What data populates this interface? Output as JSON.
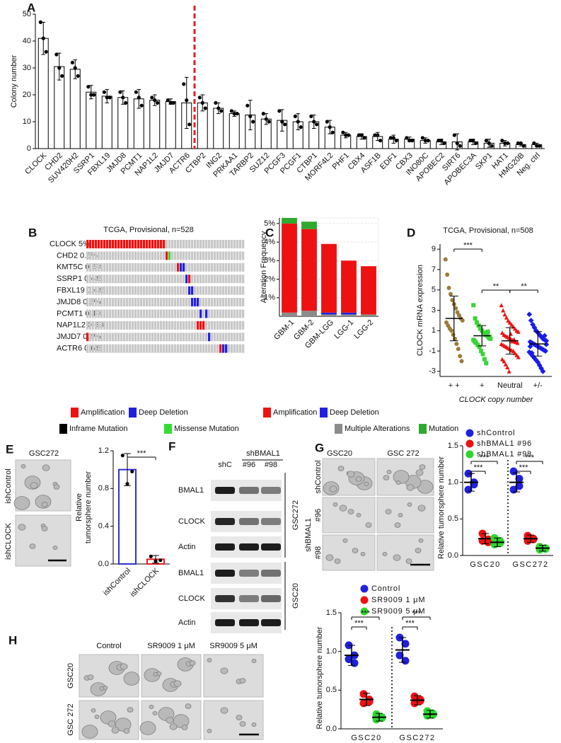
{
  "panel_labels": [
    "A",
    "B",
    "C",
    "D",
    "E",
    "F",
    "G",
    "H"
  ],
  "chart_data": [
    {
      "type": "bar",
      "ylabel": "Colony number",
      "categories": [
        "CLOCK",
        "CHD2",
        "SUV420H2",
        "SSRP1",
        "FBXL19",
        "JMJD8",
        "PCMT1",
        "NAP1L2",
        "JMJD7",
        "ACTR6",
        "CTBP2",
        "ING2",
        "PRKAA1",
        "TARBP2",
        "SUZ12",
        "PCGF3",
        "PCGF1",
        "CTBP1",
        "MORF4L2",
        "PHF1",
        "CBX4",
        "ASF1B",
        "EDF1",
        "CBX3",
        "INO80C",
        "APOBEC2",
        "SIRT6",
        "APOBEC3A",
        "SKP1",
        "HAT1",
        "HMG20B",
        "Neg. ctrl"
      ],
      "values": [
        41,
        30.5,
        29.5,
        21,
        19.5,
        19,
        18.5,
        18,
        17.5,
        17,
        17,
        15,
        13,
        12.5,
        11,
        10.5,
        10,
        10,
        8,
        5,
        4.5,
        4.5,
        3.5,
        3.5,
        3,
        2.5,
        2.5,
        2.5,
        2,
        2,
        1.5,
        1.5
      ],
      "errors": [
        6,
        5,
        3.5,
        2.5,
        2.5,
        2.5,
        3.5,
        2,
        1,
        9.5,
        3,
        2,
        1,
        5.5,
        2,
        4,
        3,
        2.5,
        2.5,
        1,
        1,
        1.5,
        1.5,
        0.8,
        1,
        1,
        3,
        1,
        1.5,
        1,
        0.5,
        0.5
      ],
      "points": [
        [
          47,
          41,
          36
        ],
        [
          35,
          30,
          27
        ],
        [
          32,
          30,
          27
        ],
        [
          23,
          20,
          20
        ],
        [
          21,
          19,
          19
        ],
        [
          21,
          19,
          17
        ],
        [
          21,
          19,
          16
        ],
        [
          19,
          18,
          17
        ],
        [
          18,
          17,
          17
        ],
        [
          24,
          18,
          9
        ],
        [
          19,
          17,
          15
        ],
        [
          17,
          15,
          14
        ],
        [
          14,
          13,
          13
        ],
        [
          16,
          12,
          10
        ],
        [
          13,
          11,
          10
        ],
        [
          14,
          10,
          9
        ],
        [
          12,
          10,
          8
        ],
        [
          12,
          10,
          9
        ],
        [
          10,
          8,
          6
        ],
        [
          6,
          5,
          5
        ],
        [
          5,
          5,
          4
        ],
        [
          5,
          5,
          3
        ],
        [
          4,
          4,
          3
        ],
        [
          4,
          3,
          3
        ],
        [
          4,
          3,
          3
        ],
        [
          3,
          3,
          2
        ],
        [
          5,
          2,
          1
        ],
        [
          3,
          3,
          2
        ],
        [
          3,
          2,
          1
        ],
        [
          3,
          2,
          2
        ],
        [
          2,
          2,
          1
        ],
        [
          2,
          1,
          1
        ]
      ],
      "color": "#ffffff",
      "edgecolor": "#000000",
      "ylim": [
        0,
        50
      ],
      "yticks": [
        0,
        10,
        20,
        30,
        40,
        50
      ]
    },
    {
      "type": "stacked_bar",
      "ylabel": "Alteration Frequency",
      "categories": [
        "GBM-1",
        "GBM-2",
        "GBM-LGG",
        "LGG-1",
        "LGG-2"
      ],
      "series": [
        {
          "name": "Multiple Alterations",
          "color": "#8c8c8c",
          "values": [
            0.2,
            0.3,
            0.1,
            0.1,
            0.1
          ]
        },
        {
          "name": "Deep Deletion",
          "color": "#2020e0",
          "values": [
            0,
            0,
            0.1,
            0.1,
            0
          ]
        },
        {
          "name": "Amplification",
          "color": "#ee1111",
          "values": [
            4.8,
            4.4,
            3.7,
            2.8,
            2.6
          ]
        },
        {
          "name": "Mutation",
          "color": "#2ea82e",
          "values": [
            0.3,
            0.4,
            0,
            0,
            0
          ]
        }
      ],
      "ylim": [
        0,
        5.3
      ],
      "yticks": [
        {
          "value": 1,
          "label": "1%"
        },
        {
          "value": 2,
          "label": "2%"
        },
        {
          "value": 3,
          "label": "3%"
        },
        {
          "value": 4,
          "label": "4%"
        },
        {
          "value": 5,
          "label": "5%"
        }
      ],
      "grid": true
    },
    {
      "type": "strip",
      "title": "TCGA, Provisional, n=508",
      "ylabel": "CLOCK mRNA expression",
      "xlabel": "CLOCK copy number",
      "categories": [
        "+ +",
        "+",
        "Neutral",
        "+/-"
      ],
      "colors": [
        "#9c7b3a",
        "#3ad43a",
        "#ee1111",
        "#1a1aee"
      ],
      "markers": [
        "circle",
        "square",
        "triangle",
        "diamond"
      ],
      "means": [
        2.2,
        0.5,
        0.0,
        -0.3
      ],
      "errors": [
        2.2,
        1.0,
        1.3,
        1.2
      ],
      "points": [
        [
          8.0,
          6.5,
          5.2,
          4.6,
          4.0,
          3.6,
          3.2,
          2.8,
          2.5,
          2.2,
          2.0,
          1.8,
          1.5,
          1.2,
          1.0,
          0.6,
          0.2,
          -0.3,
          -0.8,
          -1.5,
          -2.0
        ],
        [
          3.5,
          2.2,
          1.8,
          1.5,
          1.2,
          1.0,
          0.8,
          0.6,
          0.5,
          0.3,
          0.2,
          0.0,
          -0.2,
          -0.4,
          -0.6,
          -1.0,
          -1.3,
          -1.8,
          -2.2,
          0.9,
          0.4,
          0.1,
          -0.1
        ],
        [
          3.5,
          3.0,
          2.6,
          2.3,
          2.0,
          1.8,
          1.6,
          1.4,
          1.2,
          1.0,
          0.9,
          0.8,
          0.6,
          0.5,
          0.4,
          0.3,
          0.2,
          0.1,
          0.0,
          -0.1,
          -0.2,
          -0.3,
          -0.4,
          -0.5,
          -0.6,
          -0.7,
          -0.8,
          -0.9,
          -1.0,
          -1.2,
          -1.4,
          -1.6,
          -1.8,
          -2.0,
          -2.3,
          -2.6,
          -3.0,
          0.7,
          -0.05,
          0.15
        ],
        [
          2.6,
          2.0,
          1.6,
          1.3,
          1.0,
          0.8,
          0.6,
          0.4,
          0.2,
          0.1,
          0.0,
          -0.1,
          -0.2,
          -0.3,
          -0.4,
          -0.5,
          -0.6,
          -0.7,
          -0.8,
          -0.9,
          -1.0,
          -1.1,
          -1.3,
          -1.5,
          -1.7,
          -1.9,
          -2.1,
          -2.4,
          -2.7,
          -3.0,
          0.5,
          -0.35,
          -0.55,
          -1.2
        ]
      ],
      "ylim": [
        -3.5,
        9.5
      ],
      "yticks": [
        -3,
        -1,
        1,
        3,
        5,
        7,
        9
      ],
      "annotations": [
        "***",
        "**",
        "**"
      ]
    },
    {
      "type": "bar",
      "ylabel": [
        "Relative",
        "tumorsphere number"
      ],
      "categories": [
        "ishControl",
        "ishCLOCK"
      ],
      "values": [
        1.0,
        0.05
      ],
      "errors": [
        0.17,
        0.04
      ],
      "points": [
        [
          1.15,
          0.85,
          0.98
        ],
        [
          0.08,
          0.03,
          0.04
        ]
      ],
      "color": "#ffffff",
      "colors": [
        "#3030d0",
        "#e02020"
      ],
      "ylim": [
        0,
        1.2
      ],
      "yticks": [
        {
          "value": 0,
          "label": "0.0"
        },
        0.4,
        0.8,
        1.2
      ],
      "annotations": [
        "***"
      ]
    },
    {
      "type": "grouped_strip",
      "ylabel": "Relative tumorsphere number",
      "categories": [
        "GSC20",
        "GSC272"
      ],
      "series": [
        {
          "name": "shControl",
          "color": "#2020dd",
          "values": [
            1.0,
            1.0
          ],
          "errors": [
            0.12,
            0.13
          ],
          "points": [
            [
              1.12,
              1.0,
              0.9,
              0.97
            ],
            [
              1.15,
              1.05,
              0.9,
              0.95
            ]
          ]
        },
        {
          "name": "shBMAL1 #96",
          "color": "#ee1111",
          "values": [
            0.23,
            0.23
          ],
          "errors": [
            0.07,
            0.05
          ],
          "points": [
            [
              0.3,
              0.22,
              0.2,
              0.18
            ],
            [
              0.27,
              0.22,
              0.2,
              0.23
            ]
          ]
        },
        {
          "name": "shBMAL1 #98",
          "color": "#2ed82e",
          "values": [
            0.18,
            0.1
          ],
          "errors": [
            0.06,
            0.04
          ],
          "points": [
            [
              0.24,
              0.17,
              0.15,
              0.2
            ],
            [
              0.12,
              0.09,
              0.08,
              0.1
            ]
          ]
        }
      ],
      "ylim": [
        0,
        1.5
      ],
      "yticks": [
        {
          "value": 0,
          "label": "0.0"
        },
        0.5,
        {
          "value": 1,
          "label": "1.0"
        },
        1.5
      ],
      "annotations": [
        "***",
        "***",
        "***",
        "***"
      ]
    },
    {
      "type": "grouped_strip",
      "ylabel": "Relative tumorsphere number",
      "categories": [
        "GSC20",
        "GSC272"
      ],
      "series": [
        {
          "name": "Control",
          "color": "#2020dd",
          "values": [
            0.95,
            1.02
          ],
          "errors": [
            0.13,
            0.16
          ],
          "points": [
            [
              1.08,
              0.95,
              0.9,
              0.85
            ],
            [
              1.18,
              1.1,
              0.95,
              0.88
            ]
          ]
        },
        {
          "name": "SR9009 1 μM",
          "color": "#ee1111",
          "values": [
            0.38,
            0.37
          ],
          "errors": [
            0.08,
            0.06
          ],
          "points": [
            [
              0.45,
              0.38,
              0.33,
              0.35
            ],
            [
              0.42,
              0.38,
              0.33,
              0.36
            ]
          ]
        },
        {
          "name": "SR9009 5 μM",
          "color": "#2ed82e",
          "values": [
            0.15,
            0.19
          ],
          "errors": [
            0.05,
            0.05
          ],
          "points": [
            [
              0.19,
              0.15,
              0.12,
              0.14
            ],
            [
              0.23,
              0.2,
              0.17,
              0.18
            ]
          ]
        }
      ],
      "ylim": [
        0,
        1.5
      ],
      "yticks": [
        {
          "value": 0,
          "label": "0.0"
        },
        0.5,
        {
          "value": 1,
          "label": "1.0"
        },
        1.5
      ],
      "annotations": [
        "***",
        "***",
        "***",
        "***"
      ]
    }
  ],
  "oncoprint": {
    "title": "TCGA, Provisional, n=528",
    "rows": [
      "CLOCK 5%",
      "CHD2 0.6%",
      "KMT5C 0.6%",
      "SSRP1 0.4%",
      "FBXL19 0.4%",
      "JMJD8 0.6%",
      "PCMT1 0.4%",
      "NAP1L2 0.6%",
      "JMJD7 0.4%",
      "ACTR6 0.6%"
    ],
    "legend": [
      {
        "name": "Amplification",
        "color": "#ee1111"
      },
      {
        "name": "Deep Deletion",
        "color": "#2020e0"
      },
      {
        "name": "Inframe Mutation",
        "color": "#000000"
      },
      {
        "name": "Missense Mutation",
        "color": "#33dd33"
      }
    ]
  },
  "panel_e": {
    "title": "GSC272",
    "rows": [
      "ishControl",
      "ishCLOCK"
    ]
  },
  "panel_f": {
    "header": "shBMAL1",
    "lanes": [
      "shC",
      "#96",
      "#98"
    ],
    "rows": [
      "BMAL1",
      "CLOCK",
      "Actin",
      "BMAL1",
      "CLOCK",
      "Actin"
    ],
    "groups": [
      "GSC272",
      "GSC20"
    ]
  },
  "panel_g": {
    "columns": [
      "GSC20",
      "GSC 272"
    ],
    "rows": [
      "shControl",
      "#96",
      "#98"
    ],
    "group": "shBMAL1"
  },
  "panel_h": {
    "columns": [
      "Control",
      "SR9009 1 μM",
      "SR9009 5 μM"
    ],
    "rows": [
      "GSC20",
      "GSC 272"
    ]
  }
}
